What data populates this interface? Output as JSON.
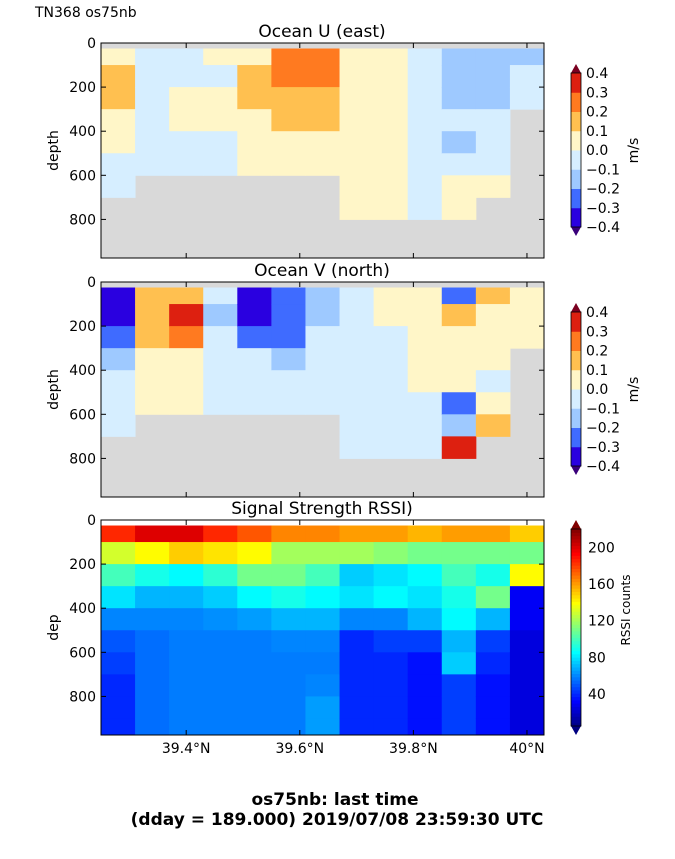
{
  "header": {
    "label": "TN368 os75nb"
  },
  "footer": {
    "line1": "os75nb: last time",
    "line2": "(dday = 189.000) 2019/07/08 23:59:30 UTC"
  },
  "colors": {
    "nodata": "#d9d9d9",
    "levels": [
      "#2a00e0",
      "#3f6bff",
      "#9ec9ff",
      "#d6eeff",
      "#fff6c8",
      "#ffc050",
      "#ff7a20",
      "#dd2010"
    ],
    "under": "#3a007a",
    "over": "#7a0020"
  },
  "chart_data": [
    {
      "type": "heatmap",
      "title": "Ocean U (east)",
      "ylabel": "depth",
      "xlabel": "",
      "cbar_label": "m/s",
      "ylim": [
        0,
        975
      ],
      "xlim": [
        39.25,
        40.03
      ],
      "yticks": [
        "0",
        "200",
        "400",
        "600",
        "800"
      ],
      "ytick_values": [
        0,
        200,
        400,
        600,
        800
      ],
      "xtick_values": [
        39.4,
        39.6,
        39.8,
        40.0
      ],
      "xticks": [],
      "cbar_ticks": [
        "0.4",
        "0.3",
        "0.2",
        "0.1",
        "0.0",
        "−0.1",
        "−0.2",
        "−0.3",
        "−0.4"
      ],
      "cbar_range": [
        -0.4,
        0.4
      ],
      "colormap": "discrete",
      "x": [
        39.28,
        39.34,
        39.4,
        39.46,
        39.52,
        39.58,
        39.64,
        39.7,
        39.76,
        39.82,
        39.88,
        39.94,
        40.0
      ],
      "depth": [
        50,
        150,
        250,
        350,
        450,
        550,
        650,
        750,
        850,
        950
      ],
      "values": [
        [
          0.05,
          0.15,
          0.15,
          0.05,
          0.05,
          -0.05,
          -0.05,
          null,
          null,
          null
        ],
        [
          -0.05,
          -0.05,
          -0.05,
          -0.05,
          -0.05,
          -0.05,
          null,
          null,
          null,
          null
        ],
        [
          -0.05,
          -0.05,
          0.05,
          0.05,
          -0.05,
          -0.05,
          null,
          null,
          null,
          null
        ],
        [
          0.05,
          -0.05,
          0.05,
          0.05,
          -0.05,
          -0.05,
          null,
          null,
          null,
          null
        ],
        [
          0.05,
          0.15,
          0.15,
          0.05,
          0.05,
          0.05,
          null,
          null,
          null,
          null
        ],
        [
          0.25,
          0.25,
          0.15,
          0.15,
          0.05,
          0.05,
          null,
          null,
          null,
          null
        ],
        [
          0.25,
          0.25,
          0.15,
          0.15,
          0.05,
          0.05,
          null,
          null,
          null,
          null
        ],
        [
          0.05,
          0.05,
          0.05,
          0.05,
          0.05,
          0.05,
          0.05,
          0.05,
          null,
          null
        ],
        [
          0.05,
          0.05,
          0.05,
          0.05,
          0.05,
          0.05,
          0.05,
          0.05,
          null,
          null
        ],
        [
          -0.05,
          -0.05,
          -0.05,
          -0.05,
          -0.05,
          -0.05,
          -0.05,
          -0.05,
          null,
          null
        ],
        [
          -0.15,
          -0.15,
          -0.15,
          -0.05,
          -0.15,
          -0.05,
          0.05,
          0.05,
          null,
          null
        ],
        [
          -0.15,
          -0.15,
          -0.15,
          -0.05,
          -0.05,
          -0.05,
          0.05,
          null,
          null,
          null
        ],
        [
          -0.15,
          -0.05,
          -0.05,
          null,
          null,
          null,
          null,
          null,
          null,
          null
        ]
      ]
    },
    {
      "type": "heatmap",
      "title": "Ocean V (north)",
      "ylabel": "depth",
      "xlabel": "",
      "cbar_label": "m/s",
      "ylim": [
        0,
        975
      ],
      "xlim": [
        39.25,
        40.03
      ],
      "yticks": [
        "0",
        "200",
        "400",
        "600",
        "800"
      ],
      "ytick_values": [
        0,
        200,
        400,
        600,
        800
      ],
      "xtick_values": [
        39.4,
        39.6,
        39.8,
        40.0
      ],
      "xticks": [],
      "cbar_ticks": [
        "0.4",
        "0.3",
        "0.2",
        "0.1",
        "0.0",
        "−0.1",
        "−0.2",
        "−0.3",
        "−0.4"
      ],
      "cbar_range": [
        -0.4,
        0.4
      ],
      "colormap": "discrete",
      "x": [
        39.28,
        39.34,
        39.4,
        39.46,
        39.52,
        39.58,
        39.64,
        39.7,
        39.76,
        39.82,
        39.88,
        39.94,
        40.0
      ],
      "depth": [
        50,
        150,
        250,
        350,
        450,
        550,
        650,
        750,
        850,
        950
      ],
      "values": [
        [
          -0.35,
          -0.35,
          -0.25,
          -0.15,
          -0.05,
          -0.05,
          -0.05,
          null,
          null,
          null
        ],
        [
          0.15,
          0.15,
          0.15,
          0.05,
          0.05,
          0.05,
          null,
          null,
          null,
          null
        ],
        [
          0.15,
          0.35,
          0.25,
          0.05,
          0.05,
          0.05,
          null,
          null,
          null,
          null
        ],
        [
          -0.05,
          -0.15,
          -0.05,
          -0.05,
          -0.05,
          -0.05,
          null,
          null,
          null,
          null
        ],
        [
          -0.35,
          -0.35,
          -0.25,
          -0.05,
          -0.05,
          -0.05,
          null,
          null,
          null,
          null
        ],
        [
          -0.25,
          -0.25,
          -0.25,
          -0.15,
          -0.05,
          -0.05,
          null,
          null,
          null,
          null
        ],
        [
          -0.15,
          -0.15,
          -0.05,
          -0.05,
          -0.05,
          -0.05,
          null,
          null,
          null,
          null
        ],
        [
          -0.05,
          -0.05,
          -0.05,
          -0.05,
          -0.05,
          -0.05,
          -0.05,
          -0.05,
          null,
          null
        ],
        [
          0.05,
          0.05,
          -0.05,
          -0.05,
          -0.05,
          -0.05,
          -0.05,
          -0.05,
          null,
          null
        ],
        [
          0.05,
          0.05,
          0.05,
          0.05,
          0.05,
          -0.05,
          -0.05,
          -0.05,
          null,
          null
        ],
        [
          -0.25,
          0.15,
          0.05,
          0.05,
          0.05,
          -0.25,
          -0.15,
          0.35,
          null,
          null
        ],
        [
          0.15,
          0.05,
          0.05,
          0.05,
          -0.05,
          0.05,
          0.15,
          null,
          null,
          null
        ],
        [
          0.05,
          0.05,
          0.05,
          null,
          null,
          null,
          null,
          null,
          null,
          null
        ]
      ]
    },
    {
      "type": "heatmap",
      "title": "Signal Strength RSSI)",
      "ylabel": "dep",
      "xlabel": "",
      "cbar_label": "RSSI counts",
      "ylim": [
        0,
        975
      ],
      "xlim": [
        39.25,
        40.03
      ],
      "yticks": [
        "0",
        "200",
        "400",
        "600",
        "800"
      ],
      "ytick_values": [
        0,
        200,
        400,
        600,
        800
      ],
      "xtick_values": [
        39.4,
        39.6,
        39.8,
        40.0
      ],
      "xticks": [
        "39.4°N",
        "39.6°N",
        "39.8°N",
        "40°N"
      ],
      "cbar_ticks": [
        "200",
        "160",
        "120",
        "80",
        "40"
      ],
      "cbar_tick_values": [
        200,
        160,
        120,
        80,
        40
      ],
      "cbar_range": [
        5,
        220
      ],
      "colormap": "jet",
      "x": [
        39.28,
        39.34,
        39.4,
        39.46,
        39.52,
        39.58,
        39.64,
        39.7,
        39.76,
        39.82,
        39.88,
        39.94,
        40.0
      ],
      "depth": [
        50,
        150,
        250,
        350,
        450,
        550,
        650,
        750,
        850,
        950
      ],
      "values": [
        [
          185,
          130,
          100,
          80,
          60,
          50,
          45,
          40,
          40,
          40
        ],
        [
          200,
          140,
          90,
          70,
          60,
          55,
          55,
          55,
          55,
          55
        ],
        [
          200,
          150,
          85,
          70,
          60,
          58,
          58,
          58,
          58,
          58
        ],
        [
          185,
          145,
          95,
          75,
          62,
          58,
          58,
          58,
          58,
          58
        ],
        [
          175,
          140,
          110,
          85,
          65,
          58,
          58,
          58,
          58,
          58
        ],
        [
          165,
          120,
          110,
          90,
          70,
          60,
          58,
          58,
          58,
          58
        ],
        [
          165,
          120,
          100,
          85,
          70,
          60,
          58,
          60,
          65,
          65
        ],
        [
          160,
          120,
          75,
          80,
          60,
          40,
          40,
          40,
          40,
          40
        ],
        [
          160,
          115,
          80,
          85,
          60,
          45,
          40,
          40,
          40,
          40
        ],
        [
          155,
          110,
          85,
          80,
          70,
          45,
          35,
          35,
          35,
          35
        ],
        [
          160,
          110,
          100,
          90,
          85,
          70,
          75,
          45,
          45,
          45
        ],
        [
          160,
          110,
          90,
          110,
          70,
          45,
          40,
          35,
          35,
          35
        ],
        [
          150,
          110,
          140,
          30,
          30,
          25,
          25,
          25,
          25,
          25
        ]
      ]
    }
  ]
}
